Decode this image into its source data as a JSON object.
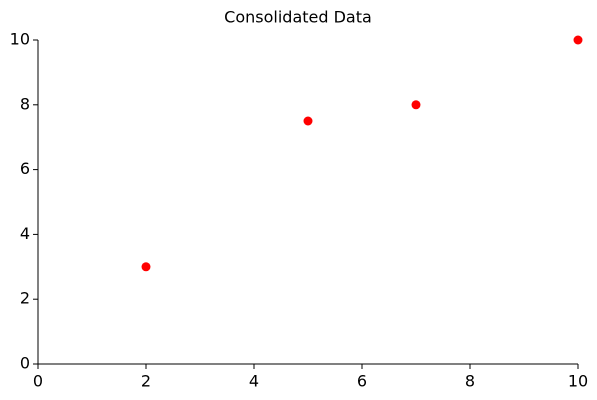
{
  "chart_data": {
    "type": "scatter",
    "title": "Consolidated Data",
    "x": [
      2,
      5,
      7,
      10
    ],
    "values": [
      3,
      7.5,
      8,
      10
    ],
    "color": "#ff0000",
    "xlim": [
      0,
      10
    ],
    "xticks": [
      0,
      2,
      4,
      6,
      8,
      10
    ],
    "ylim": [
      0,
      10
    ],
    "yticks": [
      0,
      2,
      4,
      6,
      8,
      10
    ],
    "grid": false
  }
}
